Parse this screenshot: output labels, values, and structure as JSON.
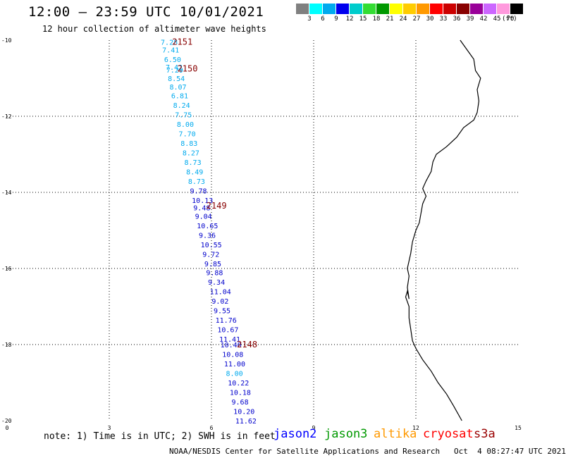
{
  "title": "12:00 – 23:59 UTC 10/01/2021",
  "subtitle": "12 hour collection of altimeter wave heights",
  "legend": {
    "colors": [
      "#808080",
      "#00ffff",
      "#00aaee",
      "#0000ee",
      "#00cccc",
      "#33dd33",
      "#009900",
      "#ffff00",
      "#ffcc00",
      "#ff9900",
      "#ff0000",
      "#cc0000",
      "#880000",
      "#990099",
      "#cc66ff",
      "#ff99dd",
      "#000000"
    ],
    "labels": [
      "3",
      "6",
      "9",
      "12",
      "15",
      "18",
      "21",
      "24",
      "27",
      "30",
      "33",
      "36",
      "39",
      "42",
      "45",
      "70"
    ],
    "unit": "(ft)"
  },
  "axes": {
    "y_ticks": [
      "-10",
      "-12",
      "-14",
      "-16",
      "-18",
      "-20"
    ],
    "x_ticks": [
      "0",
      "3",
      "6",
      "9",
      "12",
      "15"
    ],
    "lat_range": [
      -20,
      -10
    ],
    "lon_range": [
      0,
      15
    ]
  },
  "passes": [
    {
      "label": "2151",
      "lat": -10.05,
      "lon": 4.6
    },
    {
      "label": "2150",
      "lat": -10.75,
      "lon": 4.75
    },
    {
      "label": "2149",
      "lat": -14.35,
      "lon": 5.6
    },
    {
      "label": "2148",
      "lat": -18.0,
      "lon": 6.5
    }
  ],
  "observations": [
    {
      "v": "7.28",
      "lat": -10.05,
      "color": "#00aaee"
    },
    {
      "v": "7.41",
      "lat": -10.25,
      "color": "#00aaee"
    },
    {
      "v": "6.50",
      "lat": -10.5,
      "color": "#00aaee"
    },
    {
      "v": "7.42",
      "lat": -10.7,
      "color": "#00aaee"
    },
    {
      "v": "7.29",
      "lat": -10.78,
      "color": "#00aaee"
    },
    {
      "v": "8.54",
      "lat": -11.0,
      "color": "#00aaee"
    },
    {
      "v": "8.07",
      "lat": -11.22,
      "color": "#00aaee"
    },
    {
      "v": "6.81",
      "lat": -11.45,
      "color": "#00aaee"
    },
    {
      "v": "8.24",
      "lat": -11.7,
      "color": "#00aaee"
    },
    {
      "v": "7.75",
      "lat": -11.95,
      "color": "#00aaee"
    },
    {
      "v": "8.00",
      "lat": -12.2,
      "color": "#00aaee"
    },
    {
      "v": "7.70",
      "lat": -12.45,
      "color": "#00aaee"
    },
    {
      "v": "8.83",
      "lat": -12.7,
      "color": "#00aaee"
    },
    {
      "v": "8.27",
      "lat": -12.95,
      "color": "#00aaee"
    },
    {
      "v": "8.73",
      "lat": -13.2,
      "color": "#00aaee"
    },
    {
      "v": "8.49",
      "lat": -13.45,
      "color": "#00aaee"
    },
    {
      "v": "8.73",
      "lat": -13.7,
      "color": "#00aaee"
    },
    {
      "v": "9.78",
      "lat": -13.95,
      "color": "#0000cc"
    },
    {
      "v": "10.13",
      "lat": -14.2,
      "color": "#0000cc"
    },
    {
      "v": "9.48",
      "lat": -14.4,
      "color": "#0000cc"
    },
    {
      "v": "9.04",
      "lat": -14.62,
      "color": "#0000cc"
    },
    {
      "v": "10.65",
      "lat": -14.87,
      "color": "#0000cc"
    },
    {
      "v": "9.36",
      "lat": -15.12,
      "color": "#0000cc"
    },
    {
      "v": "10.55",
      "lat": -15.37,
      "color": "#0000cc"
    },
    {
      "v": "9.72",
      "lat": -15.62,
      "color": "#0000cc"
    },
    {
      "v": "9.85",
      "lat": -15.87,
      "color": "#0000cc"
    },
    {
      "v": "9.88",
      "lat": -16.1,
      "color": "#0000cc"
    },
    {
      "v": "9.34",
      "lat": -16.35,
      "color": "#0000cc"
    },
    {
      "v": "11.04",
      "lat": -16.6,
      "color": "#0000cc"
    },
    {
      "v": "9.02",
      "lat": -16.85,
      "color": "#0000cc"
    },
    {
      "v": "9.55",
      "lat": -17.1,
      "color": "#0000cc"
    },
    {
      "v": "11.76",
      "lat": -17.35,
      "color": "#0000cc"
    },
    {
      "v": "10.67",
      "lat": -17.6,
      "color": "#0000cc"
    },
    {
      "v": "11.41",
      "lat": -17.85,
      "color": "#0000cc"
    },
    {
      "v": "10.40",
      "lat": -18.0,
      "color": "#0000cc"
    },
    {
      "v": "10.08",
      "lat": -18.25,
      "color": "#0000cc"
    },
    {
      "v": "11.00",
      "lat": -18.5,
      "color": "#0000cc"
    },
    {
      "v": "8.00",
      "lat": -18.75,
      "color": "#00aaee"
    },
    {
      "v": "10.22",
      "lat": -19.0,
      "color": "#0000cc"
    },
    {
      "v": "10.18",
      "lat": -19.25,
      "color": "#0000cc"
    },
    {
      "v": "9.68",
      "lat": -19.5,
      "color": "#0000cc"
    },
    {
      "v": "10.20",
      "lat": -19.75,
      "color": "#0000cc"
    },
    {
      "v": "11.62",
      "lat": -20.0,
      "color": "#0000cc"
    }
  ],
  "coastline_color": "#000000",
  "footer": {
    "note": "note: 1) Time is in UTC; 2) SWH is in feet",
    "satellites": [
      {
        "name": "jason2",
        "color": "#0000ff"
      },
      {
        "name": "jason3",
        "color": "#009900"
      },
      {
        "name": "altika",
        "color": "#ff9900"
      },
      {
        "name": "cryosat",
        "color": "#ff0000"
      },
      {
        "name": "s3a",
        "color": "#990000"
      }
    ],
    "credit": "NOAA/NESDIS Center for Satellite Applications and Research   Oct  4 08:27:47 UTC 2021"
  }
}
